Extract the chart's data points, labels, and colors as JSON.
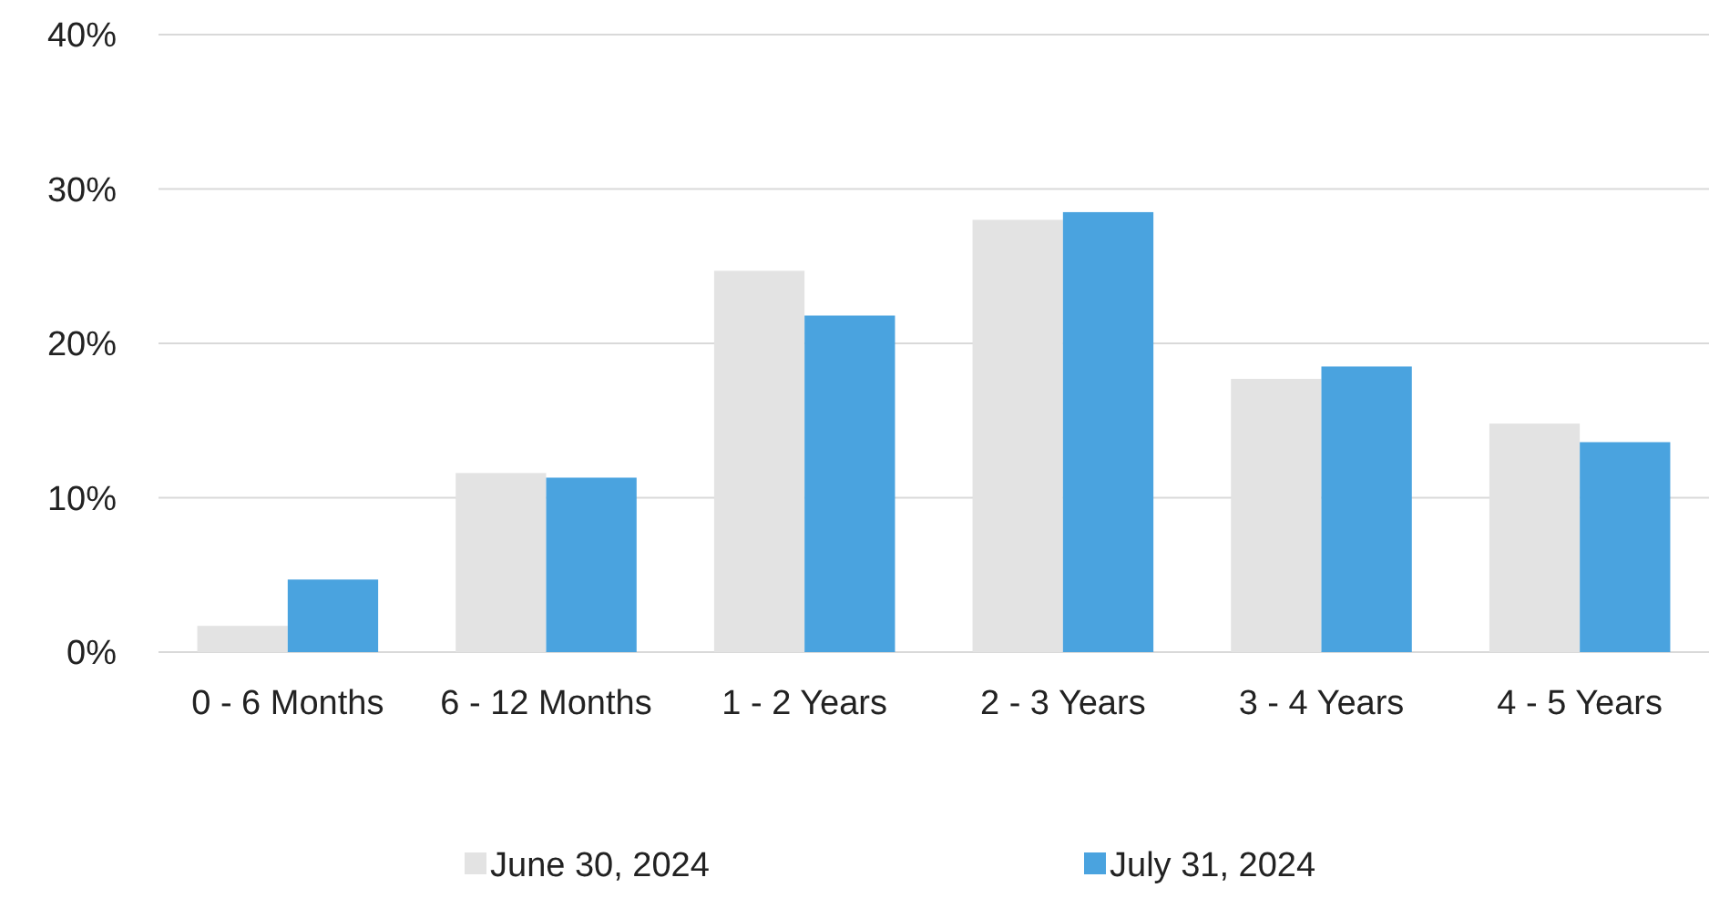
{
  "chart_data": {
    "type": "bar",
    "categories": [
      "0 - 6 Months",
      "6 - 12 Months",
      "1 - 2 Years",
      "2 - 3 Years",
      "3 - 4 Years",
      "4 - 5 Years"
    ],
    "series": [
      {
        "name": "June 30, 2024",
        "color": "#e3e3e3",
        "values": [
          1.7,
          11.6,
          24.7,
          28.0,
          17.7,
          14.8
        ]
      },
      {
        "name": "July 31, 2024",
        "color": "#4aa3df",
        "values": [
          4.7,
          11.3,
          21.8,
          28.5,
          18.5,
          13.6
        ]
      }
    ],
    "ylim": [
      0,
      40
    ],
    "yticks": [
      {
        "value": 0,
        "label": "0%"
      },
      {
        "value": 10,
        "label": "10%"
      },
      {
        "value": 20,
        "label": "20%"
      },
      {
        "value": 30,
        "label": "30%"
      },
      {
        "value": 40,
        "label": "40%"
      }
    ],
    "grid": "y",
    "legend": "bottom"
  }
}
